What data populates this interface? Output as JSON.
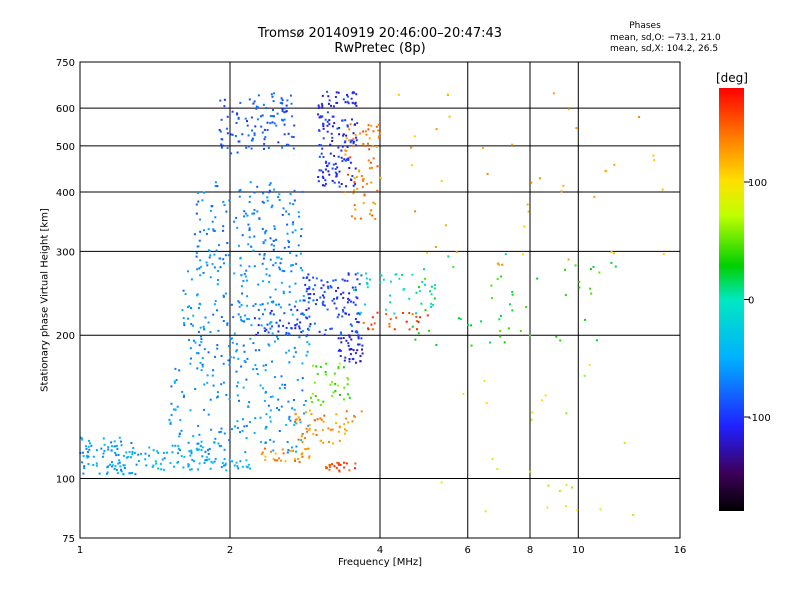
{
  "header": {
    "title": "Tromsø 20140919 20:46:00–20:47:43",
    "subtitle": "RwPretec (8p)"
  },
  "stats": {
    "heading": "Phases",
    "o_mode": "mean, sd,O: −73.1, 21.0",
    "x_mode": "mean, sd,X: 104.2, 26.5"
  },
  "chart_data": {
    "type": "scatter",
    "xscale": "log",
    "yscale": "log",
    "xlabel": "Frequency [MHz]",
    "ylabel": "Stationary phase Virtual Height [km]",
    "xlim": [
      1,
      16
    ],
    "ylim": [
      75,
      750
    ],
    "xticks": [
      1,
      2,
      4,
      6,
      8,
      10,
      16
    ],
    "yticks": [
      75,
      100,
      200,
      300,
      400,
      500,
      600,
      750
    ],
    "grid": true,
    "colorbar": {
      "label": "[deg]",
      "range": [
        -180,
        180
      ],
      "ticks": [
        -100,
        0,
        100
      ],
      "colormap": "rainbow"
    },
    "clusters": [
      {
        "f": [
          1.0,
          1.3
        ],
        "h": [
          102,
          122
        ],
        "phase": -55,
        "n": 90
      },
      {
        "f": [
          1.3,
          1.85
        ],
        "h": [
          104,
          118
        ],
        "phase": -48,
        "n": 60
      },
      {
        "f": [
          1.8,
          2.2
        ],
        "h": [
          104,
          110
        ],
        "phase": -45,
        "n": 25
      },
      {
        "f": [
          1.5,
          2.9
        ],
        "h": [
          112,
          170
        ],
        "phase": -60,
        "n": 160
      },
      {
        "f": [
          1.6,
          2.9
        ],
        "h": [
          170,
          300
        ],
        "phase": -65,
        "n": 230
      },
      {
        "f": [
          1.7,
          2.8
        ],
        "h": [
          280,
          420
        ],
        "phase": -70,
        "n": 140
      },
      {
        "f": [
          1.9,
          2.7
        ],
        "h": [
          480,
          650
        ],
        "phase": -85,
        "n": 110
      },
      {
        "f": [
          3.0,
          3.6
        ],
        "h": [
          410,
          650
        ],
        "phase": -105,
        "n": 150
      },
      {
        "f": [
          2.8,
          3.7
        ],
        "h": [
          200,
          270
        ],
        "phase": -95,
        "n": 110
      },
      {
        "f": [
          2.2,
          2.9
        ],
        "h": [
          200,
          230
        ],
        "phase": -100,
        "n": 40
      },
      {
        "f": [
          3.3,
          3.7
        ],
        "h": [
          175,
          200
        ],
        "phase": -110,
        "n": 40
      },
      {
        "f": [
          2.3,
          2.9
        ],
        "h": [
          108,
          116
        ],
        "phase": 130,
        "n": 30
      },
      {
        "f": [
          2.7,
          3.7
        ],
        "h": [
          118,
          140
        ],
        "phase": 135,
        "n": 55
      },
      {
        "f": [
          3.1,
          3.6
        ],
        "h": [
          103,
          108
        ],
        "phase": 150,
        "n": 22
      },
      {
        "f": [
          2.9,
          3.5
        ],
        "h": [
          140,
          175
        ],
        "phase": 50,
        "n": 35
      },
      {
        "f": [
          3.4,
          4.0
        ],
        "h": [
          350,
          560
        ],
        "phase": 140,
        "n": 70
      },
      {
        "f": [
          3.7,
          5.0
        ],
        "h": [
          205,
          225
        ],
        "phase": 155,
        "n": 25
      },
      {
        "f": [
          3.5,
          5.2
        ],
        "h": [
          220,
          270
        ],
        "phase": -5,
        "n": 40
      },
      {
        "f": [
          4.5,
          12.0
        ],
        "h": [
          190,
          300
        ],
        "phase": 30,
        "n": 55
      },
      {
        "f": [
          4.0,
          15.0
        ],
        "h": [
          280,
          650
        ],
        "phase": 120,
        "n": 45
      },
      {
        "f": [
          5.0,
          13.0
        ],
        "h": [
          80,
          190
        ],
        "phase": 80,
        "n": 25
      }
    ]
  },
  "colors": {
    "grid": "#000000",
    "frame": "#000000",
    "background": "#ffffff"
  }
}
